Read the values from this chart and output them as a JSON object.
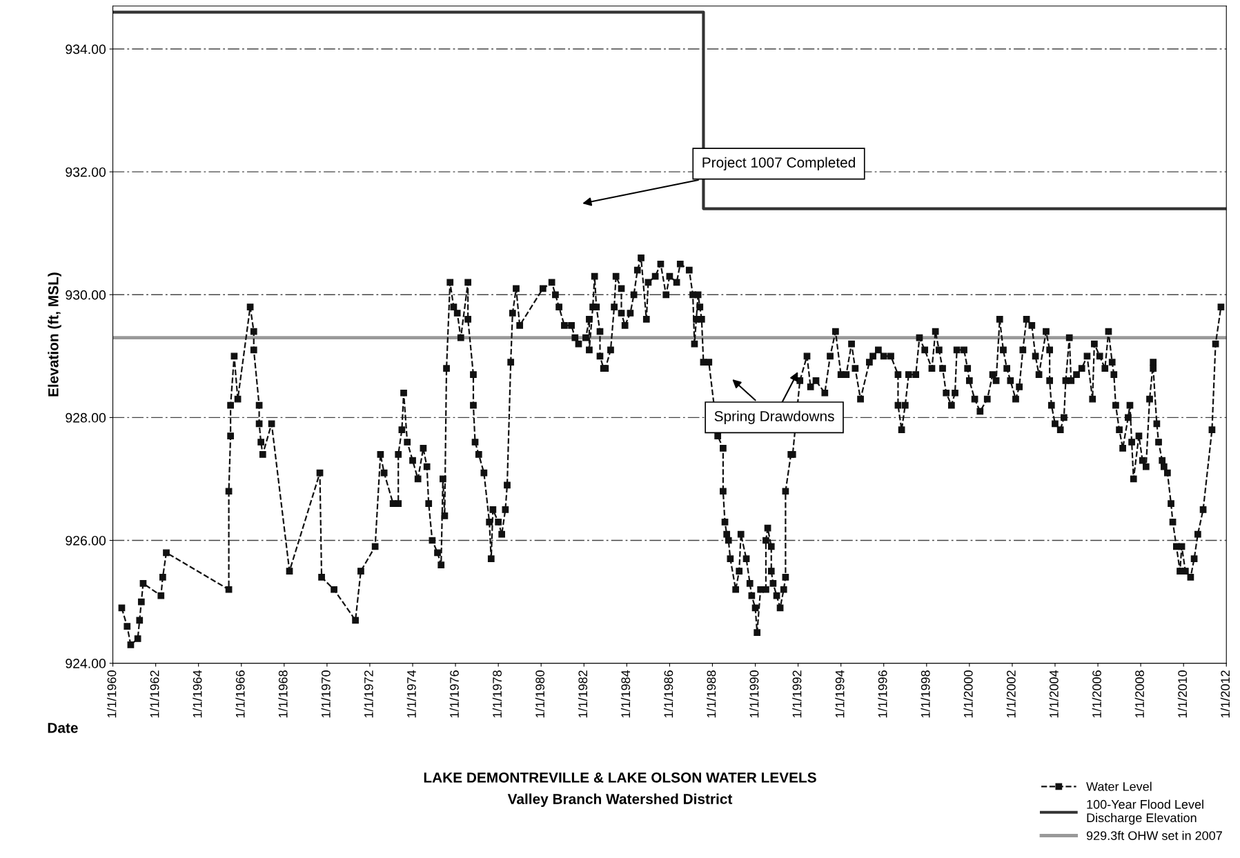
{
  "chart_data": {
    "type": "line",
    "title": "LAKE DEMONTREVILLE & LAKE OLSON WATER LEVELS",
    "subtitle": "Valley Branch Watershed District",
    "xlabel": "Date",
    "ylabel": "Elevation (ft, MSL)",
    "xlim": [
      "1960",
      "2012"
    ],
    "xticks": [
      {
        "value": "1960",
        "label": "1/1/1960"
      },
      {
        "value": "1962",
        "label": "1/1/1962"
      },
      {
        "value": "1964",
        "label": "1/1/1964"
      },
      {
        "value": "1966",
        "label": "1/1/1966"
      },
      {
        "value": "1968",
        "label": "1/1/1968"
      },
      {
        "value": "1970",
        "label": "1/1/1970"
      },
      {
        "value": "1972",
        "label": "1/1/1972"
      },
      {
        "value": "1974",
        "label": "1/1/1974"
      },
      {
        "value": "1976",
        "label": "1/1/1976"
      },
      {
        "value": "1978",
        "label": "1/1/1978"
      },
      {
        "value": "1980",
        "label": "1/1/1980"
      },
      {
        "value": "1982",
        "label": "1/1/1982"
      },
      {
        "value": "1984",
        "label": "1/1/1984"
      },
      {
        "value": "1986",
        "label": "1/1/1986"
      },
      {
        "value": "1988",
        "label": "1/1/1988"
      },
      {
        "value": "1990",
        "label": "1/1/1990"
      },
      {
        "value": "1992",
        "label": "1/1/1992"
      },
      {
        "value": "1994",
        "label": "1/1/1994"
      },
      {
        "value": "1996",
        "label": "1/1/1996"
      },
      {
        "value": "1998",
        "label": "1/1/1998"
      },
      {
        "value": "2000",
        "label": "1/1/2000"
      },
      {
        "value": "2002",
        "label": "1/1/2002"
      },
      {
        "value": "2004",
        "label": "1/1/2004"
      },
      {
        "value": "2006",
        "label": "1/1/2006"
      },
      {
        "value": "2008",
        "label": "1/1/2008"
      },
      {
        "value": "2010",
        "label": "1/1/2010"
      },
      {
        "value": "2012",
        "label": "1/1/2012"
      }
    ],
    "ylim": [
      924,
      934.7
    ],
    "yticks": [
      {
        "value": 924,
        "label": "924.00"
      },
      {
        "value": 926,
        "label": "926.00"
      },
      {
        "value": 928,
        "label": "928.00"
      },
      {
        "value": 930,
        "label": "930.00"
      },
      {
        "value": 932,
        "label": "932.00"
      },
      {
        "value": 934,
        "label": "934.00"
      }
    ],
    "grid": "y",
    "legend": "bottom right",
    "series": [
      {
        "name": "Water Level",
        "color": "#111111",
        "marker": "square",
        "line_style": "dashed",
        "x": [
          "1960-06",
          "1960-09",
          "1960-11",
          "1961-03",
          "1961-04",
          "1961-05",
          "1961-06",
          "1962-04",
          "1962-05",
          "1962-07",
          "1965-06",
          "1965-06",
          "1965-07",
          "1965-07",
          "1965-09",
          "1965-11",
          "1966-06",
          "1966-08",
          "1966-08",
          "1966-11",
          "1966-11",
          "1966-12",
          "1967-01",
          "1967-06",
          "1968-04",
          "1969-09",
          "1969-10",
          "1970-05",
          "1971-05",
          "1971-08",
          "1972-04",
          "1972-07",
          "1972-09",
          "1973-02",
          "1973-05",
          "1973-05",
          "1973-07",
          "1973-08",
          "1973-10",
          "1974-01",
          "1974-04",
          "1974-07",
          "1974-09",
          "1974-10",
          "1974-12",
          "1975-03",
          "1975-05",
          "1975-06",
          "1975-07",
          "1975-08",
          "1975-10",
          "1975-12",
          "1976-02",
          "1976-04",
          "1976-08",
          "1976-08",
          "1976-11",
          "1976-11",
          "1976-12",
          "1977-02",
          "1977-05",
          "1977-08",
          "1977-09",
          "1977-10",
          "1978-01",
          "1978-03",
          "1978-05",
          "1978-06",
          "1978-08",
          "1978-09",
          "1978-11",
          "1979-01",
          "1980-02",
          "1980-07",
          "1980-09",
          "1980-11",
          "1981-02",
          "1981-06",
          "1981-08",
          "1981-10",
          "1982-02",
          "1982-04",
          "1982-04",
          "1982-06",
          "1982-07",
          "1982-08",
          "1982-10",
          "1982-10",
          "1982-12",
          "1983-01",
          "1983-04",
          "1983-06",
          "1983-07",
          "1983-10",
          "1983-10",
          "1983-12",
          "1984-03",
          "1984-05",
          "1984-07",
          "1984-09",
          "1984-12",
          "1985-01",
          "1985-05",
          "1985-08",
          "1985-11",
          "1986-01",
          "1986-05",
          "1986-07",
          "1986-12",
          "1987-02",
          "1987-03",
          "1987-04",
          "1987-05",
          "1987-06",
          "1987-07",
          "1987-08",
          "1987-11",
          "1988-04",
          "1988-07",
          "1988-07",
          "1988-08",
          "1988-09",
          "1988-10",
          "1988-11",
          "1989-02",
          "1989-04",
          "1989-05",
          "1989-08",
          "1989-10",
          "1989-11",
          "1990-01",
          "1990-02",
          "1990-04",
          "1990-07",
          "1990-07",
          "1990-08",
          "1990-10",
          "1990-10",
          "1990-11",
          "1991-01",
          "1991-03",
          "1991-05",
          "1991-06",
          "1991-06",
          "1991-09",
          "1991-10",
          "1992-02",
          "1992-06",
          "1992-08",
          "1992-11",
          "1993-04",
          "1993-07",
          "1993-10",
          "1994-01",
          "1994-04",
          "1994-07",
          "1994-09",
          "1994-12",
          "1995-05",
          "1995-07",
          "1995-10",
          "1996-01",
          "1996-05",
          "1996-09",
          "1996-09",
          "1996-11",
          "1997-01",
          "1997-03",
          "1997-07",
          "1997-09",
          "1997-12",
          "1998-04",
          "1998-06",
          "1998-08",
          "1998-10",
          "1998-12",
          "1999-03",
          "1999-05",
          "1999-06",
          "1999-10",
          "1999-12",
          "2000-01",
          "2000-04",
          "2000-07",
          "2000-11",
          "2001-02",
          "2001-04",
          "2001-06",
          "2001-08",
          "2001-10",
          "2001-12",
          "2002-03",
          "2002-05",
          "2002-07",
          "2002-09",
          "2002-12",
          "2003-02",
          "2003-04",
          "2003-08",
          "2003-10",
          "2003-10",
          "2003-11",
          "2004-01",
          "2004-04",
          "2004-06",
          "2004-07",
          "2004-09",
          "2004-10",
          "2005-01",
          "2005-04",
          "2005-07",
          "2005-10",
          "2005-11",
          "2006-02",
          "2006-05",
          "2006-07",
          "2006-09",
          "2006-10",
          "2006-11",
          "2007-01",
          "2007-03",
          "2007-06",
          "2007-07",
          "2007-08",
          "2007-09",
          "2007-12",
          "2008-02",
          "2008-04",
          "2008-06",
          "2008-08",
          "2008-08",
          "2008-10",
          "2008-11",
          "2009-01",
          "2009-02",
          "2009-04",
          "2009-06",
          "2009-07",
          "2009-09",
          "2009-11",
          "2009-12",
          "2010-02",
          "2010-05",
          "2010-07",
          "2010-09",
          "2010-12",
          "2011-05",
          "2011-07",
          "2011-10"
        ],
        "values": [
          924.9,
          924.6,
          924.3,
          924.4,
          924.7,
          925.0,
          925.3,
          925.1,
          925.4,
          925.8,
          925.2,
          926.8,
          927.7,
          928.2,
          929.0,
          928.3,
          929.8,
          929.4,
          929.1,
          928.2,
          927.9,
          927.6,
          927.4,
          927.9,
          925.5,
          927.1,
          925.4,
          925.2,
          924.7,
          925.5,
          925.9,
          927.4,
          927.1,
          926.6,
          926.6,
          927.4,
          927.8,
          928.4,
          927.6,
          927.3,
          927.0,
          927.5,
          927.2,
          926.6,
          926.0,
          925.8,
          925.6,
          927.0,
          926.4,
          928.8,
          930.2,
          929.8,
          929.7,
          929.3,
          930.2,
          929.6,
          928.7,
          928.2,
          927.6,
          927.4,
          927.1,
          926.3,
          925.7,
          926.5,
          926.3,
          926.1,
          926.5,
          926.9,
          928.9,
          929.7,
          930.1,
          929.5,
          930.1,
          930.2,
          930.0,
          929.8,
          929.5,
          929.5,
          929.3,
          929.2,
          929.3,
          929.6,
          929.1,
          929.8,
          930.3,
          929.8,
          929.4,
          929.0,
          928.8,
          928.8,
          929.1,
          929.8,
          930.3,
          930.1,
          929.7,
          929.5,
          929.7,
          930.0,
          930.4,
          930.6,
          929.6,
          930.2,
          930.3,
          930.5,
          930.0,
          930.3,
          930.2,
          930.5,
          930.4,
          930.0,
          929.2,
          929.6,
          930.0,
          929.8,
          929.6,
          928.9,
          928.9,
          927.7,
          927.5,
          926.8,
          926.3,
          926.1,
          926.0,
          925.7,
          925.2,
          925.5,
          926.1,
          925.7,
          925.3,
          925.1,
          924.9,
          924.5,
          925.2,
          925.2,
          926.0,
          926.2,
          925.9,
          925.5,
          925.3,
          925.1,
          924.9,
          925.2,
          925.4,
          926.8,
          927.4,
          927.4,
          928.6,
          929.0,
          928.5,
          928.6,
          928.4,
          929.0,
          929.4,
          928.7,
          928.7,
          929.2,
          928.8,
          928.3,
          928.9,
          929.0,
          929.1,
          929.0,
          929.0,
          928.7,
          928.2,
          927.8,
          928.2,
          928.7,
          928.7,
          929.3,
          929.1,
          928.8,
          929.4,
          929.1,
          928.8,
          928.4,
          928.2,
          928.4,
          929.1,
          929.1,
          928.8,
          928.6,
          928.3,
          928.1,
          928.3,
          928.7,
          928.6,
          929.6,
          929.1,
          928.8,
          928.6,
          928.3,
          928.5,
          929.1,
          929.6,
          929.5,
          929.0,
          928.7,
          929.4,
          929.1,
          928.6,
          928.2,
          927.9,
          927.8,
          928.0,
          928.6,
          929.3,
          928.6,
          928.7,
          928.8,
          929.0,
          928.3,
          929.2,
          929.0,
          928.8,
          929.4,
          928.9,
          928.7,
          928.2,
          927.8,
          927.5,
          928.0,
          928.2,
          927.6,
          927.0,
          927.7,
          927.3,
          927.2,
          928.3,
          928.9,
          928.8,
          927.9,
          927.6,
          927.3,
          927.2,
          927.1,
          926.6,
          926.3,
          925.9,
          925.5,
          925.9,
          925.5,
          925.4,
          925.7,
          926.1,
          926.5,
          927.8,
          929.2,
          929.8
        ]
      },
      {
        "name": "100-Year Flood Level\nDischarge Elevation",
        "color": "#333333",
        "marker": "none",
        "line_style": "solid",
        "x": [
          "1960",
          "1987-08",
          "1987-08",
          "2012"
        ],
        "values": [
          934.6,
          934.6,
          931.4,
          931.4
        ]
      },
      {
        "name": "929.3ft OHW set in 2007",
        "color": "#999999",
        "marker": "none",
        "line_style": "solid",
        "x": [
          "1960",
          "2012"
        ],
        "values": [
          929.3,
          929.3
        ]
      }
    ],
    "annotations": [
      "Project 1007 Completed",
      "Spring Drawdowns"
    ]
  }
}
